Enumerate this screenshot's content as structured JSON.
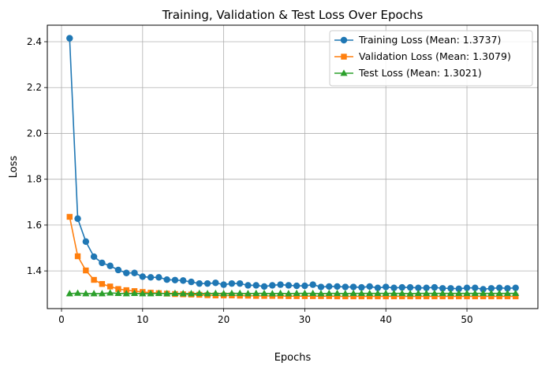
{
  "chart_data": {
    "type": "line",
    "title": "Training, Validation & Test Loss Over Epochs",
    "xlabel": "Epochs",
    "ylabel": "Loss",
    "xlim": [
      -1.75,
      58.75
    ],
    "ylim": [
      1.2356,
      2.4721
    ],
    "xticks": [
      0,
      10,
      20,
      30,
      40,
      50
    ],
    "yticks": [
      1.4,
      1.6,
      1.8,
      2.0,
      2.2,
      2.4
    ],
    "xtick_labels": [
      "0",
      "10",
      "20",
      "30",
      "40",
      "50"
    ],
    "ytick_labels": [
      "1.4",
      "1.6",
      "1.8",
      "2.0",
      "2.2",
      "2.4"
    ],
    "grid": true,
    "legend_position": "top-right",
    "x": [
      1,
      2,
      3,
      4,
      5,
      6,
      7,
      8,
      9,
      10,
      11,
      12,
      13,
      14,
      15,
      16,
      17,
      18,
      19,
      20,
      21,
      22,
      23,
      24,
      25,
      26,
      27,
      28,
      29,
      30,
      31,
      32,
      33,
      34,
      35,
      36,
      37,
      38,
      39,
      40,
      41,
      42,
      43,
      44,
      45,
      46,
      47,
      48,
      49,
      50,
      51,
      52,
      53,
      54,
      55,
      56
    ],
    "series": [
      {
        "name": "Training Loss (Mean: 1.3737)",
        "color": "#1f77b4",
        "marker": "circle",
        "values": [
          2.415,
          1.628,
          1.528,
          1.462,
          1.435,
          1.422,
          1.404,
          1.391,
          1.391,
          1.375,
          1.372,
          1.372,
          1.362,
          1.36,
          1.358,
          1.352,
          1.345,
          1.345,
          1.348,
          1.34,
          1.345,
          1.345,
          1.337,
          1.337,
          1.332,
          1.337,
          1.34,
          1.337,
          1.335,
          1.335,
          1.34,
          1.33,
          1.332,
          1.332,
          1.33,
          1.33,
          1.328,
          1.332,
          1.326,
          1.33,
          1.326,
          1.328,
          1.328,
          1.326,
          1.326,
          1.328,
          1.324,
          1.324,
          1.322,
          1.326,
          1.326,
          1.32,
          1.324,
          1.326,
          1.324,
          1.326
        ]
      },
      {
        "name": "Validation Loss (Mean: 1.3079)",
        "color": "#ff7f0e",
        "marker": "square",
        "values": [
          1.636,
          1.464,
          1.402,
          1.361,
          1.343,
          1.332,
          1.321,
          1.316,
          1.312,
          1.308,
          1.305,
          1.303,
          1.301,
          1.299,
          1.298,
          1.297,
          1.296,
          1.294,
          1.293,
          1.293,
          1.293,
          1.292,
          1.292,
          1.291,
          1.291,
          1.291,
          1.291,
          1.29,
          1.29,
          1.29,
          1.29,
          1.29,
          1.29,
          1.289,
          1.289,
          1.289,
          1.289,
          1.289,
          1.289,
          1.289,
          1.289,
          1.289,
          1.289,
          1.289,
          1.289,
          1.289,
          1.289,
          1.289,
          1.289,
          1.289,
          1.289,
          1.289,
          1.289,
          1.289,
          1.289,
          1.289
        ]
      },
      {
        "name": "Test Loss (Mean: 1.3021)",
        "color": "#2ca02c",
        "marker": "triangle",
        "values": [
          1.301,
          1.303,
          1.301,
          1.301,
          1.301,
          1.304,
          1.302,
          1.301,
          1.302,
          1.301,
          1.301,
          1.302,
          1.301,
          1.302,
          1.301,
          1.301,
          1.302,
          1.301,
          1.302,
          1.301,
          1.302,
          1.302,
          1.301,
          1.302,
          1.302,
          1.301,
          1.302,
          1.301,
          1.302,
          1.302,
          1.302,
          1.301,
          1.302,
          1.302,
          1.301,
          1.302,
          1.302,
          1.302,
          1.302,
          1.302,
          1.302,
          1.302,
          1.301,
          1.302,
          1.302,
          1.302,
          1.302,
          1.302,
          1.302,
          1.302,
          1.302,
          1.302,
          1.302,
          1.302,
          1.302,
          1.302
        ]
      }
    ]
  }
}
